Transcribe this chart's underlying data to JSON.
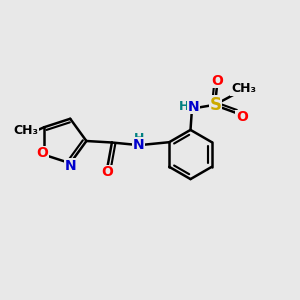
{
  "bg_color": "#e8e8e8",
  "bond_color": "#000000",
  "bond_width": 1.8,
  "atom_colors": {
    "O": "#ff0000",
    "N": "#0000cc",
    "S": "#ccaa00",
    "C": "#000000",
    "H": "#008080"
  },
  "font_size_atom": 10,
  "font_size_small": 9
}
